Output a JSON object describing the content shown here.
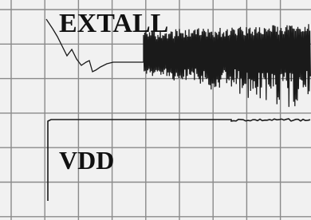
{
  "labels": {
    "top": "EXTALL",
    "bottom": "VDD"
  }
}
